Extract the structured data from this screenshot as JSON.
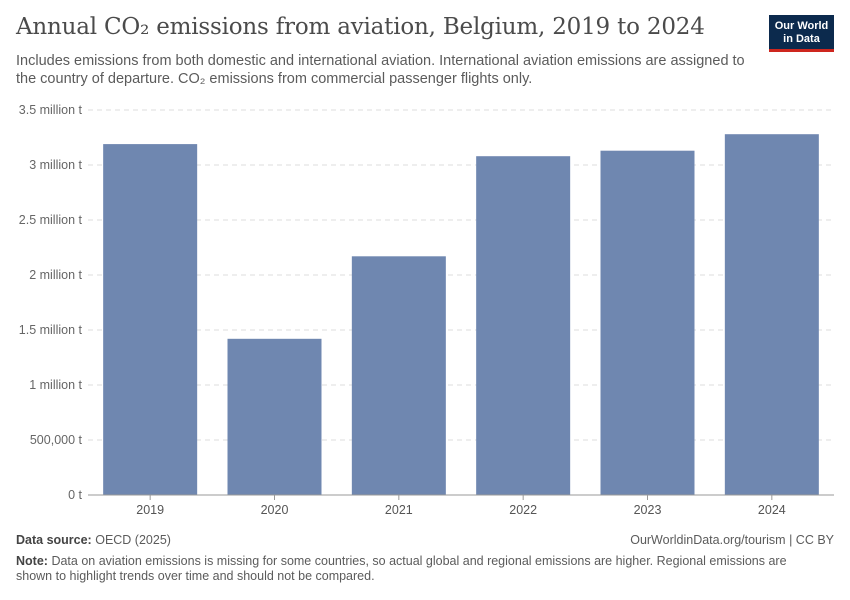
{
  "header": {
    "title": "Annual CO₂ emissions from aviation, Belgium, 2019 to 2024",
    "subtitle": "Includes emissions from both domestic and international aviation. International aviation emissions are assigned to the country of departure. CO₂ emissions from commercial passenger flights only."
  },
  "logo": {
    "line1": "Our World",
    "line2": "in Data"
  },
  "chart_data": {
    "type": "bar",
    "title": "Annual CO₂ emissions from aviation, Belgium, 2019 to 2024",
    "categories": [
      "2019",
      "2020",
      "2021",
      "2022",
      "2023",
      "2024"
    ],
    "values": [
      3190000,
      1420000,
      2170000,
      3080000,
      3130000,
      3280000
    ],
    "ylim": [
      0,
      3500000
    ],
    "yticks": [
      0,
      500000,
      1000000,
      1500000,
      2000000,
      2500000,
      3000000,
      3500000
    ],
    "ytick_labels": [
      "0 t",
      "500,000 t",
      "1 million t",
      "1.5 million t",
      "2 million t",
      "2.5 million t",
      "3 million t",
      "3.5 million t"
    ],
    "xlabel": "",
    "ylabel": "",
    "grid": true,
    "bar_color": "#6f87b0"
  },
  "footer": {
    "source_label": "Data source:",
    "source": "OECD (2025)",
    "url": "OurWorldinData.org/tourism | CC BY",
    "note_label": "Note:",
    "note": "Data on aviation emissions is missing for some countries, so actual global and regional emissions are higher. Regional emissions are shown to highlight trends over time and should not be compared."
  }
}
